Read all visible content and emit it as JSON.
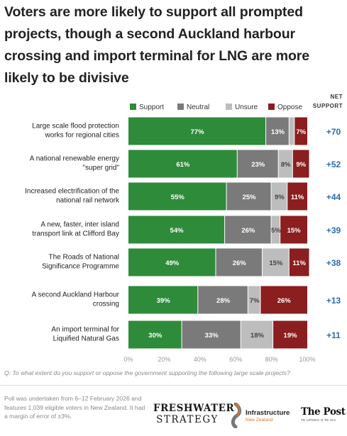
{
  "title": "Voters are more likely to support all prompted projects, though a second Auckland harbour crossing and import terminal for LNG are more likely to be divisive",
  "net_header": [
    "NET",
    "SUPPORT"
  ],
  "chart_data": {
    "type": "bar",
    "stacked": true,
    "orientation": "horizontal",
    "legend_position": "top",
    "series": [
      {
        "name": "Support",
        "color": "#2e8b3a"
      },
      {
        "name": "Neutral",
        "color": "#7a7a7a"
      },
      {
        "name": "Unsure",
        "color": "#bdbdbd"
      },
      {
        "name": "Oppose",
        "color": "#8b1e1e"
      }
    ],
    "categories": [
      {
        "label": [
          "Large scale flood protection",
          "works for regional cities"
        ],
        "values": [
          77,
          13,
          3,
          7
        ],
        "labels": [
          "77%",
          "13%",
          "",
          "7%"
        ],
        "net": "+70"
      },
      {
        "label": [
          "A national renewable energy",
          "\"super grid\""
        ],
        "values": [
          61,
          23,
          8,
          9
        ],
        "labels": [
          "61%",
          "23%",
          "8%",
          "9%"
        ],
        "net": "+52"
      },
      {
        "label": [
          "Increased electrification of the",
          "national rail network"
        ],
        "values": [
          55,
          25,
          9,
          11
        ],
        "labels": [
          "55%",
          "25%",
          "9%",
          "11%"
        ],
        "net": "+44"
      },
      {
        "label": [
          "A new, faster, inter island",
          "transport link at Clifford Bay"
        ],
        "values": [
          54,
          26,
          5,
          15
        ],
        "labels": [
          "54%",
          "26%",
          "5%",
          "15%"
        ],
        "net": "+39"
      },
      {
        "label": [
          "The Roads of National",
          "Significance Programme"
        ],
        "values": [
          49,
          26,
          15,
          11
        ],
        "labels": [
          "49%",
          "26%",
          "15%",
          "11%"
        ],
        "net": "+38"
      },
      {
        "label": [
          "A second Auckland Harbour",
          "crossing"
        ],
        "values": [
          39,
          28,
          7,
          26
        ],
        "labels": [
          "39%",
          "28%",
          "7%",
          "26%"
        ],
        "net": "+13"
      },
      {
        "label": [
          "An import terminal for",
          "Liquified Natural Gas"
        ],
        "values": [
          30,
          33,
          18,
          19
        ],
        "labels": [
          "30%",
          "33%",
          "18%",
          "19%"
        ],
        "net": "+11"
      }
    ],
    "x_ticks": [
      "0%",
      "20%",
      "40%",
      "60%",
      "80%",
      "100%"
    ],
    "xlim": [
      0,
      100
    ],
    "grid": false,
    "net_color": "#2b6cb0"
  },
  "question": "Q: To what extent do you support or oppose the government supporting the following large scale projects?",
  "footnote": "Poll was undertaken from 6–12 February 2026 and features 1,039 eligible voters in New Zealand. It had a margin of error of ±3%.",
  "logos": {
    "freshwater": [
      "FRESHWATER",
      "STRATEGY"
    ],
    "infrastructure": [
      "Infrastructure",
      "New Zealand"
    ],
    "post": [
      "The Post",
      "TE UPOKO O TE IKA"
    ]
  }
}
